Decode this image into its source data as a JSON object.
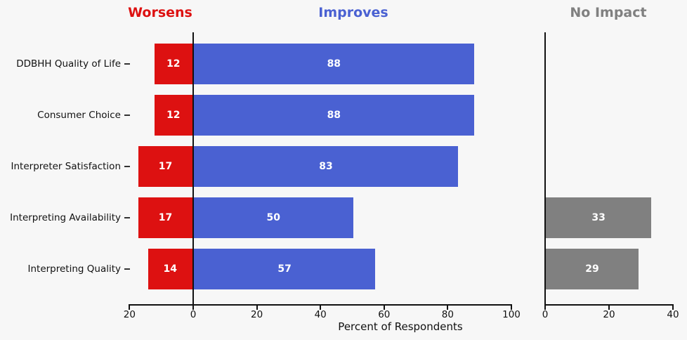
{
  "figure": {
    "background": "#f7f7f7",
    "headers": [
      {
        "id": "worsens",
        "label": "Worsens",
        "color": "#dd1111"
      },
      {
        "id": "improves",
        "label": "Improves",
        "color": "#4a61d2"
      },
      {
        "id": "no-impact",
        "label": "No Impact",
        "color": "#808080"
      }
    ]
  },
  "chart_data": {
    "type": "bar",
    "orientation": "horizontal-diverging",
    "title": "",
    "xlabel": "Percent of Respondents",
    "ylabel": "",
    "categories": [
      "DDBHH Quality of Life",
      "Consumer Choice",
      "Interpreter Satisfaction",
      "Interpreting Availability",
      "Interpreting Quality"
    ],
    "series": [
      {
        "name": "Worsens",
        "panel": "main",
        "direction": "left",
        "color": "#dd1111",
        "values": [
          12,
          12,
          17,
          17,
          14
        ]
      },
      {
        "name": "Improves",
        "panel": "main",
        "direction": "right",
        "color": "#4a61d2",
        "values": [
          88,
          88,
          83,
          50,
          57
        ]
      },
      {
        "name": "No Impact",
        "panel": "side",
        "direction": "right",
        "color": "#808080",
        "values": [
          null,
          null,
          null,
          33,
          29
        ]
      }
    ],
    "bar_value_label_color": "#ffffff",
    "main_axis": {
      "xlim": [
        -20,
        100
      ],
      "tick_values": [
        -20,
        0,
        20,
        40,
        60,
        80,
        100
      ],
      "tick_labels": [
        "20",
        "0",
        "20",
        "40",
        "60",
        "80",
        "100"
      ]
    },
    "side_axis": {
      "xlim": [
        0,
        40
      ],
      "tick_values": [
        0,
        20,
        40
      ],
      "tick_labels": [
        "0",
        "20",
        "40"
      ]
    },
    "grid": false,
    "legend_position": "column-headers-top"
  }
}
